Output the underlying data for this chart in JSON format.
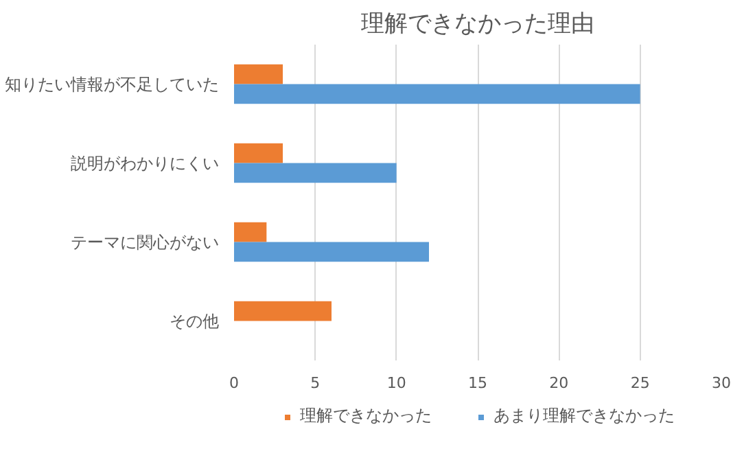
{
  "chart_data": {
    "type": "bar",
    "orientation": "horizontal",
    "title": "理解できなかった理由",
    "categories": [
      "知りたい情報が不足していた",
      "説明がわかりにくい",
      "テーマに関心がない",
      "その他"
    ],
    "series": [
      {
        "name": "理解できなかった",
        "color": "#ed7d31",
        "values": [
          3,
          3,
          2,
          6
        ]
      },
      {
        "name": "あまり理解できなかった",
        "color": "#5b9bd5",
        "values": [
          25,
          10,
          12,
          null
        ]
      }
    ],
    "xlim": [
      0,
      30
    ],
    "xticks": [
      0,
      5,
      10,
      15,
      20,
      25,
      30
    ],
    "grid": "x",
    "legend": "bottom"
  }
}
